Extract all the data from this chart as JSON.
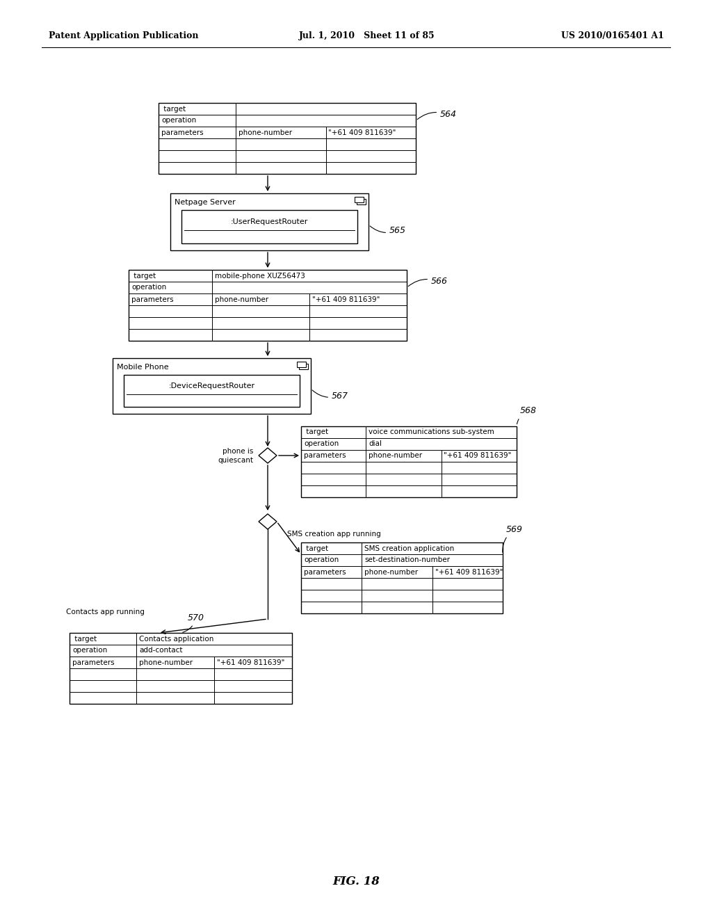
{
  "title_left": "Patent Application Publication",
  "title_mid": "Jul. 1, 2010   Sheet 11 of 85",
  "title_right": "US 2010/0165401 A1",
  "fig_label": "FIG. 18",
  "bg_color": "#ffffff"
}
